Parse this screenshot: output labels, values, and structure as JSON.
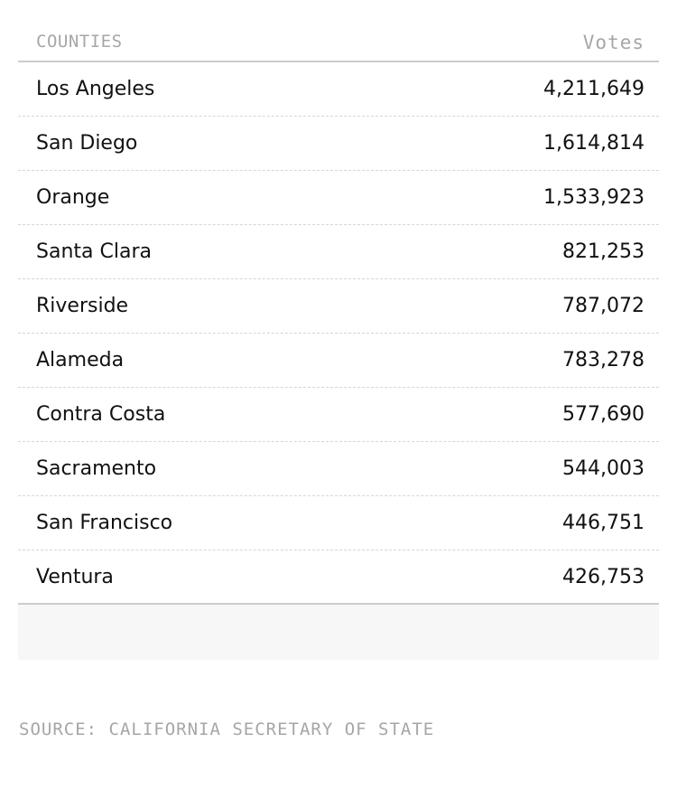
{
  "table": {
    "header": {
      "county_label": "COUNTIES",
      "votes_label": "Votes"
    },
    "rows": [
      {
        "county": "Los Angeles",
        "votes": "4,211,649"
      },
      {
        "county": "San Diego",
        "votes": "1,614,814"
      },
      {
        "county": "Orange",
        "votes": "1,533,923"
      },
      {
        "county": "Santa Clara",
        "votes": "821,253"
      },
      {
        "county": "Riverside",
        "votes": "787,072"
      },
      {
        "county": "Alameda",
        "votes": "783,278"
      },
      {
        "county": "Contra Costa",
        "votes": "577,690"
      },
      {
        "county": "Sacramento",
        "votes": "544,003"
      },
      {
        "county": "San Francisco",
        "votes": "446,751"
      },
      {
        "county": "Ventura",
        "votes": "426,753"
      }
    ]
  },
  "source": "SOURCE: CALIFORNIA SECRETARY OF STATE"
}
